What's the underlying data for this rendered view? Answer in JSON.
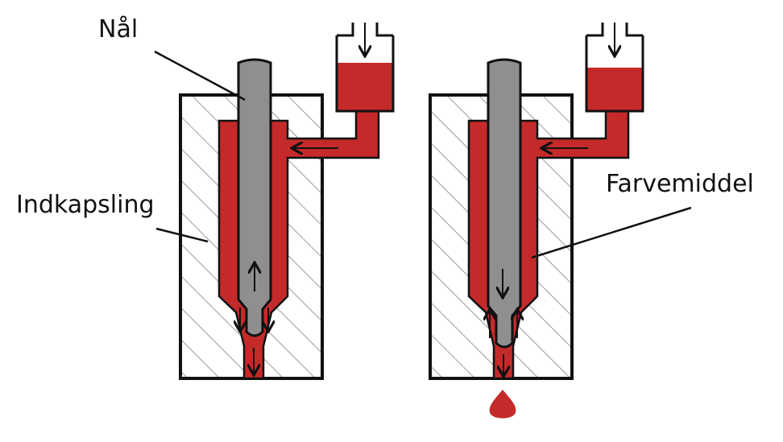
{
  "labels": {
    "needle": "Nål",
    "housing": "Indkapsling",
    "ink": "Farvemiddel"
  },
  "colors": {
    "ink": "#c42a2a",
    "needle": "#8f8f8f",
    "outline": "#111111",
    "hatch": "#9a9a9a",
    "background": "#ffffff"
  }
}
